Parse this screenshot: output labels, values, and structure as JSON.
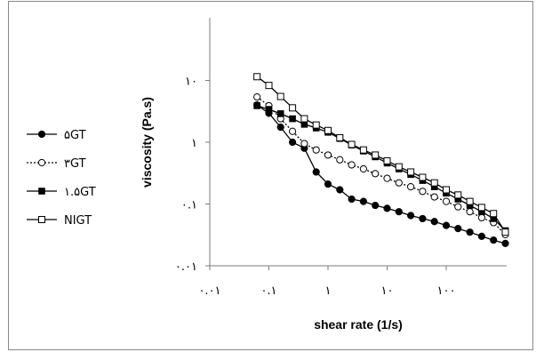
{
  "chart_data": {
    "type": "line",
    "xlabel": "shear rate (1/s)",
    "ylabel": "viscosity (Pa.s)",
    "xscale": "log",
    "yscale": "log",
    "xlim": [
      0.01,
      1000
    ],
    "ylim": [
      0.01,
      100
    ],
    "x_ticks": [
      {
        "value": 0.01,
        "label": "۰.۰۱"
      },
      {
        "value": 0.1,
        "label": "۰.۱"
      },
      {
        "value": 1,
        "label": "۱"
      },
      {
        "value": 10,
        "label": "۱۰"
      },
      {
        "value": 100,
        "label": "۱۰۰"
      }
    ],
    "y_ticks": [
      {
        "value": 0.01,
        "label": "۰.۰۱"
      },
      {
        "value": 0.1,
        "label": "۰.۱"
      },
      {
        "value": 1,
        "label": "۱"
      },
      {
        "value": 10,
        "label": "۱۰"
      }
    ],
    "grid": false,
    "legend_position": "left",
    "series": [
      {
        "name": "۵GT",
        "marker": "filled-circle",
        "line": "solid",
        "x": [
          0.063,
          0.1,
          0.158,
          0.251,
          0.398,
          0.631,
          1,
          1.585,
          2.512,
          3.981,
          6.31,
          10,
          15.85,
          25.12,
          39.81,
          63.1,
          100,
          158.5,
          251.2,
          398.1,
          631,
          1000
        ],
        "y": [
          4.0,
          2.95,
          1.75,
          1.0,
          0.8,
          0.33,
          0.21,
          0.17,
          0.12,
          0.11,
          0.095,
          0.085,
          0.075,
          0.065,
          0.058,
          0.052,
          0.045,
          0.04,
          0.035,
          0.03,
          0.026,
          0.023
        ]
      },
      {
        "name": "۳GT",
        "marker": "open-circle",
        "line": "dotted",
        "x": [
          0.063,
          0.1,
          0.158,
          0.251,
          0.398,
          0.631,
          1,
          1.585,
          2.512,
          3.981,
          6.31,
          10,
          15.85,
          25.12,
          39.81,
          63.1,
          100,
          158.5,
          251.2,
          398.1,
          631,
          1000
        ],
        "y": [
          5.4,
          3.9,
          2.4,
          1.5,
          0.95,
          0.75,
          0.62,
          0.52,
          0.43,
          0.37,
          0.31,
          0.26,
          0.22,
          0.19,
          0.16,
          0.13,
          0.11,
          0.09,
          0.075,
          0.06,
          0.05,
          0.032
        ]
      },
      {
        "name": "۱.۵GT",
        "marker": "filled-square",
        "line": "solid",
        "x": [
          0.063,
          0.1,
          0.158,
          0.251,
          0.398,
          0.631,
          1,
          1.585,
          2.512,
          3.981,
          6.31,
          10,
          15.85,
          25.12,
          39.81,
          63.1,
          100,
          158.5,
          251.2,
          398.1,
          631,
          1000
        ],
        "y": [
          3.9,
          3.4,
          2.9,
          2.4,
          1.95,
          1.7,
          1.45,
          1.15,
          0.9,
          0.72,
          0.58,
          0.46,
          0.37,
          0.3,
          0.24,
          0.19,
          0.15,
          0.12,
          0.095,
          0.075,
          0.058,
          0.037
        ]
      },
      {
        "name": "NIGT",
        "marker": "open-square",
        "line": "solid",
        "x": [
          0.063,
          0.1,
          0.158,
          0.251,
          0.398,
          0.631,
          1,
          1.585,
          2.512,
          3.981,
          6.31,
          10,
          15.85,
          25.12,
          39.81,
          63.1,
          100,
          158.5,
          251.2,
          398.1,
          631,
          1000
        ],
        "y": [
          11.5,
          8.3,
          5.5,
          3.6,
          2.4,
          1.9,
          1.55,
          1.18,
          0.92,
          0.75,
          0.62,
          0.5,
          0.4,
          0.33,
          0.27,
          0.22,
          0.17,
          0.14,
          0.11,
          0.088,
          0.07,
          0.035
        ]
      }
    ]
  }
}
